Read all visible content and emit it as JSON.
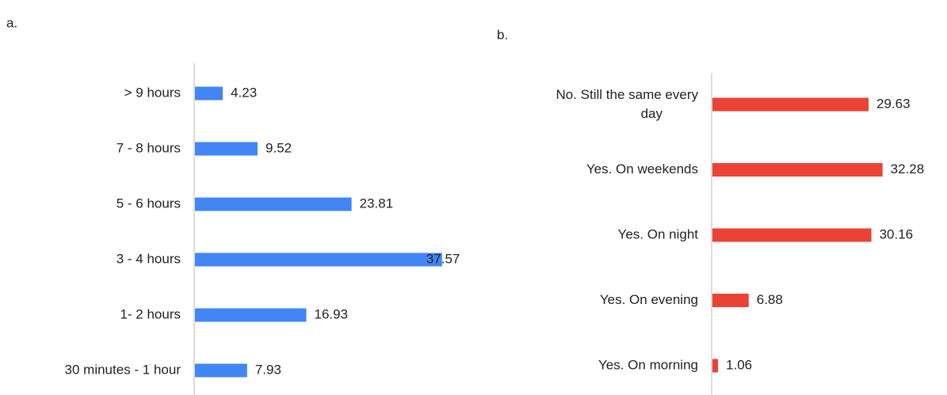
{
  "chart_data": [
    {
      "type": "barh",
      "title": "a.",
      "categories": [
        "> 9 hours",
        "7 - 8 hours",
        "5 - 6 hours",
        "3 - 4 hours",
        "1- 2 hours",
        "30 minutes - 1 hour"
      ],
      "values": [
        4.23,
        9.52,
        23.81,
        37.57,
        16.93,
        7.93
      ],
      "color": "#4285f4"
    },
    {
      "type": "barh",
      "title": "b.",
      "categories": [
        "No. Still the same every day",
        "Yes. On weekends",
        "Yes. On night",
        "Yes. On evening",
        "Yes. On morning"
      ],
      "values": [
        29.63,
        32.28,
        30.16,
        6.88,
        1.06
      ],
      "color": "#ea4335"
    }
  ]
}
